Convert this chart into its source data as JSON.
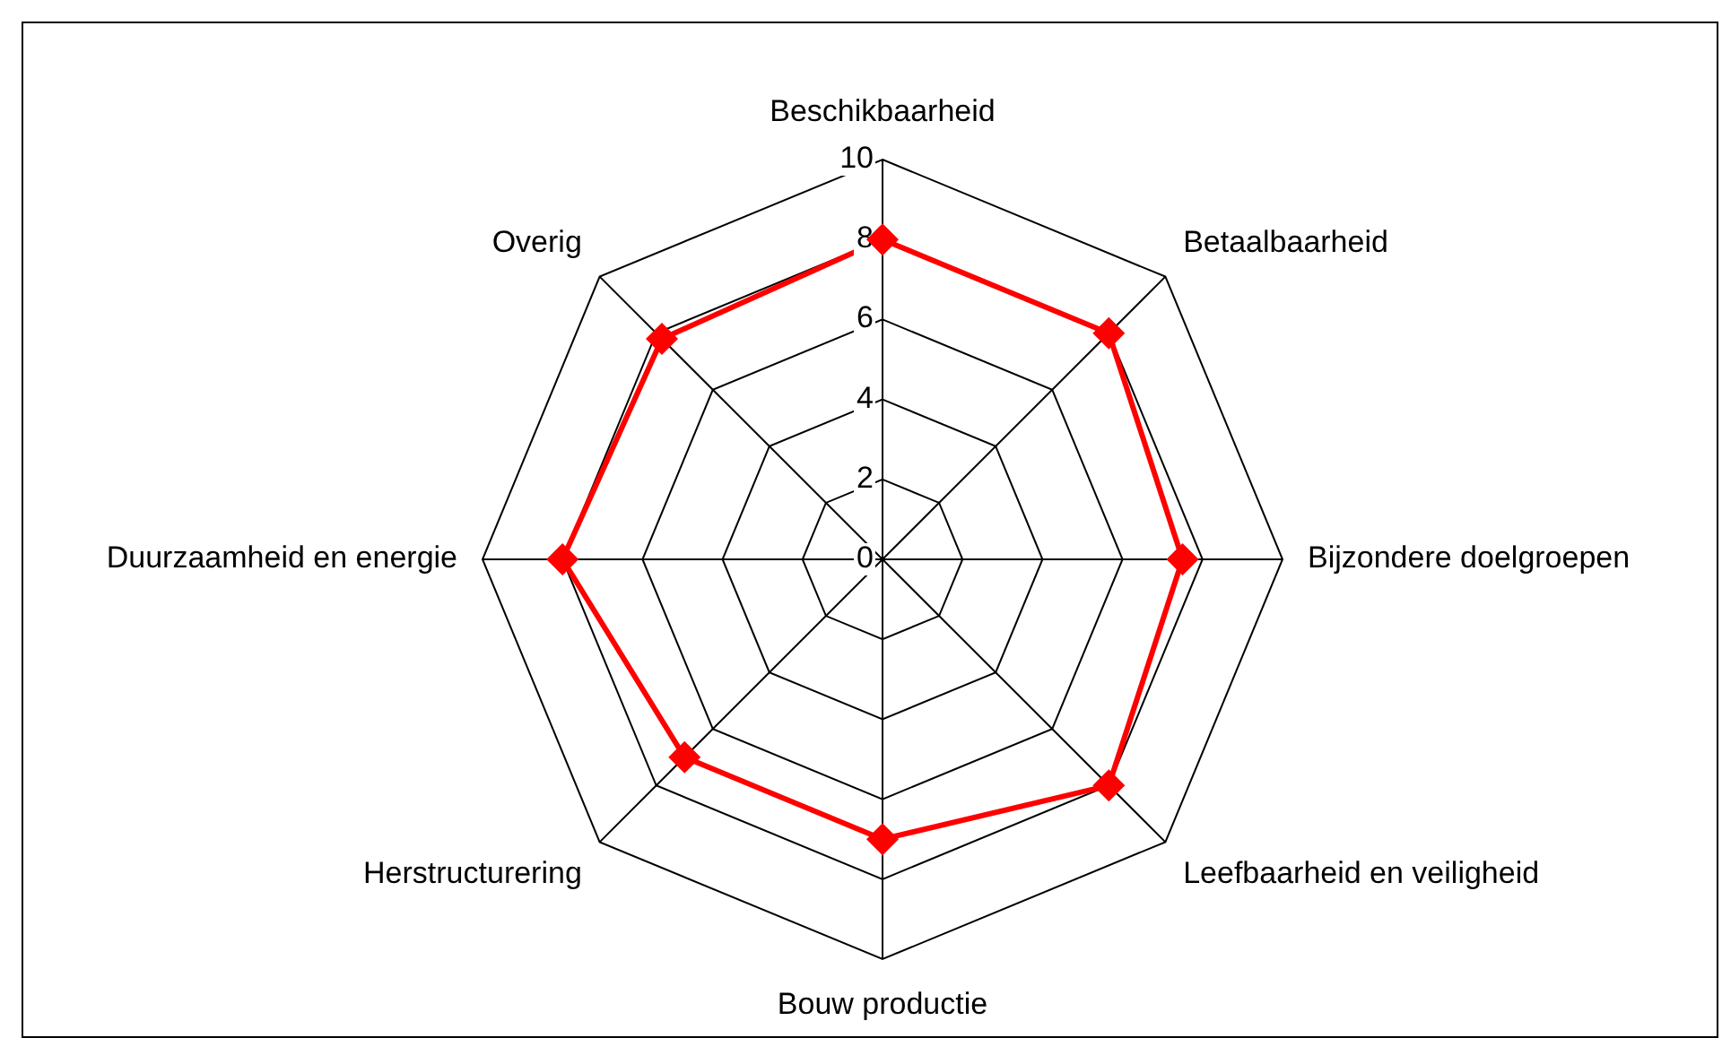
{
  "chart_data": {
    "type": "radar",
    "categories": [
      "Beschikbaarheid",
      "Betaalbaarheid",
      "Bijzondere doelgroepen",
      "Leefbaarheid en veiligheid",
      "Bouw productie",
      "Herstructurering",
      "Duurzaamheid en energie",
      "Overig"
    ],
    "series": [
      {
        "color": "#ff0000",
        "values": [
          8,
          8,
          7.5,
          8,
          7,
          7,
          8,
          7.8
        ]
      }
    ],
    "ylim": [
      0,
      10
    ],
    "yticks": [
      0,
      2,
      4,
      6,
      8,
      10
    ],
    "marker": "diamond",
    "line_style": "solid",
    "legend": false,
    "grid": true
  }
}
